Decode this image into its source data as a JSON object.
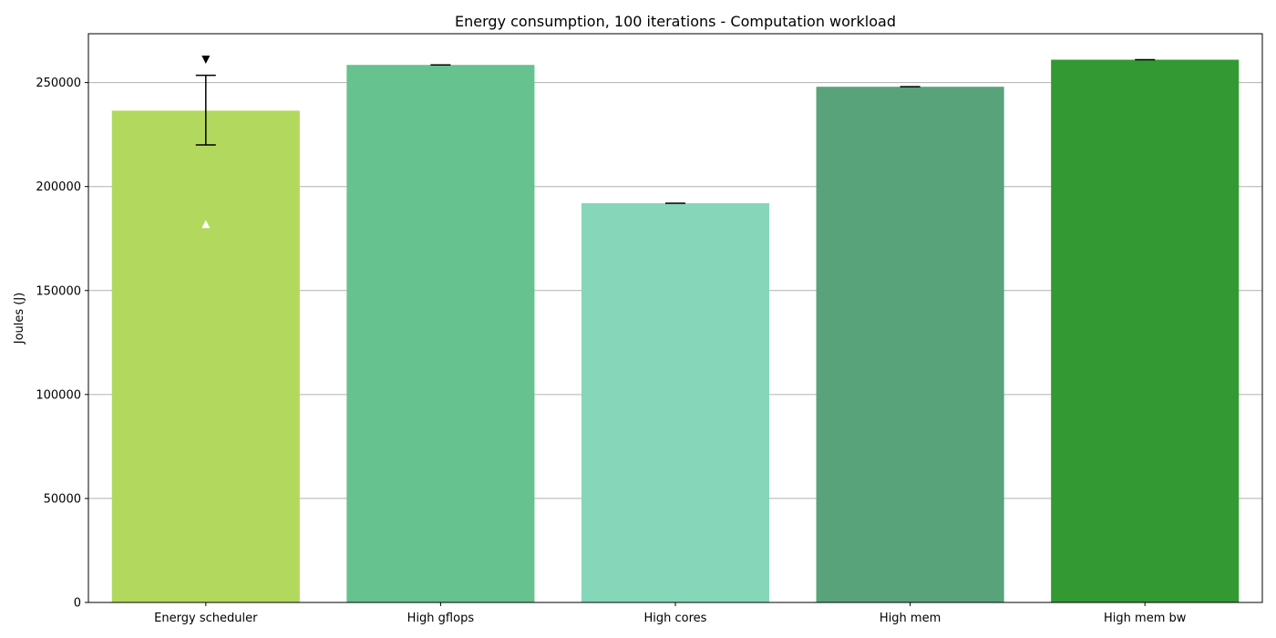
{
  "chart_data": {
    "type": "bar",
    "title": "Energy consumption, 100 iterations - Computation workload",
    "xlabel": "",
    "ylabel": "Joules (J)",
    "ylim": [
      0,
      273500
    ],
    "yticks": [
      0,
      50000,
      100000,
      150000,
      200000,
      250000
    ],
    "grid": "y",
    "categories": [
      "Energy scheduler",
      "High gflops",
      "High cores",
      "High mem",
      "High mem bw"
    ],
    "values": [
      236500,
      258500,
      192000,
      248000,
      261000
    ],
    "error_low": [
      220000,
      258500,
      192000,
      248000,
      261000
    ],
    "error_high": [
      253500,
      258500,
      192000,
      248000,
      261000
    ],
    "colors": [
      "#b2d85e",
      "#66c28e",
      "#86d6b9",
      "#58a37a",
      "#339933"
    ],
    "markers": [
      {
        "category": "Energy scheduler",
        "value": 261000,
        "shape": "triangle-down",
        "color": "#000000"
      },
      {
        "category": "Energy scheduler",
        "value": 182000,
        "shape": "triangle-up",
        "color": "#ffffff"
      }
    ]
  }
}
